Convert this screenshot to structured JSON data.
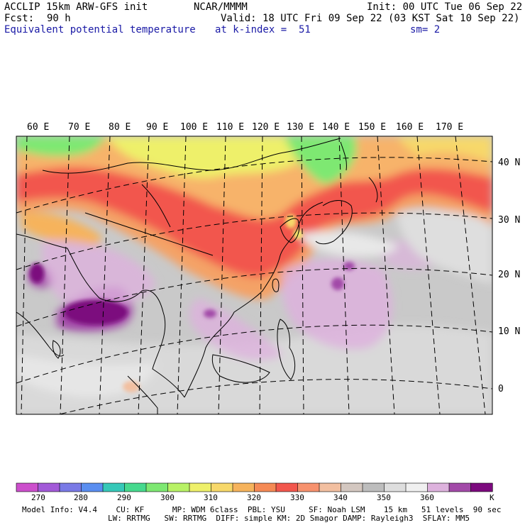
{
  "header": {
    "model": "ACCLIP 15km ARW-GFS init",
    "org": "NCAR/MMMM",
    "init": "Init: 00 UTC Tue 06 Sep 22",
    "fcst_label": "Fcst:",
    "fcst_value": "90 h",
    "valid": "Valid: 18 UTC Fri 09 Sep 22 (03 KST Sat 10 Sep 22)",
    "field": "Equivalent potential temperature",
    "level": "at k-index =  51",
    "smoothing": "sm= 2"
  },
  "longitude_labels": [
    "60 E",
    "70 E",
    "80 E",
    "90 E",
    "100 E",
    "110 E",
    "120 E",
    "130 E",
    "140 E",
    "150 E",
    "160 E",
    "170 E"
  ],
  "latitude_labels": [
    "40 N",
    "30 N",
    "20 N",
    "10 N",
    "0"
  ],
  "colorbar": {
    "unit": "K",
    "ticks": [
      "270",
      "280",
      "290",
      "300",
      "310",
      "320",
      "330",
      "340",
      "350",
      "360"
    ],
    "colors": [
      "#cc4fcc",
      "#a25ad8",
      "#7a7ae6",
      "#5a8ef0",
      "#36c8b8",
      "#46d98e",
      "#7ee872",
      "#b8f266",
      "#eef06a",
      "#f7d86a",
      "#f6b35c",
      "#f58a55",
      "#f2574d",
      "#f7926e",
      "#f2bfa0",
      "#d3c7c0",
      "#bdbdbd",
      "#dedede",
      "#f0f0f0",
      "#ddb2dd",
      "#a24aa8",
      "#7c0a7e"
    ]
  },
  "footer": {
    "line1": "Model Info: V4.4    CU: KF      MP: WDM 6class  PBL: YSU     SF: Noah LSM    15 km   51 levels  90 sec",
    "line2": "LW: RRTMG   SW: RRTMG  DIFF: simple KM: 2D Smagor DAMP: Rayleigh3  SFLAY: MM5"
  }
}
